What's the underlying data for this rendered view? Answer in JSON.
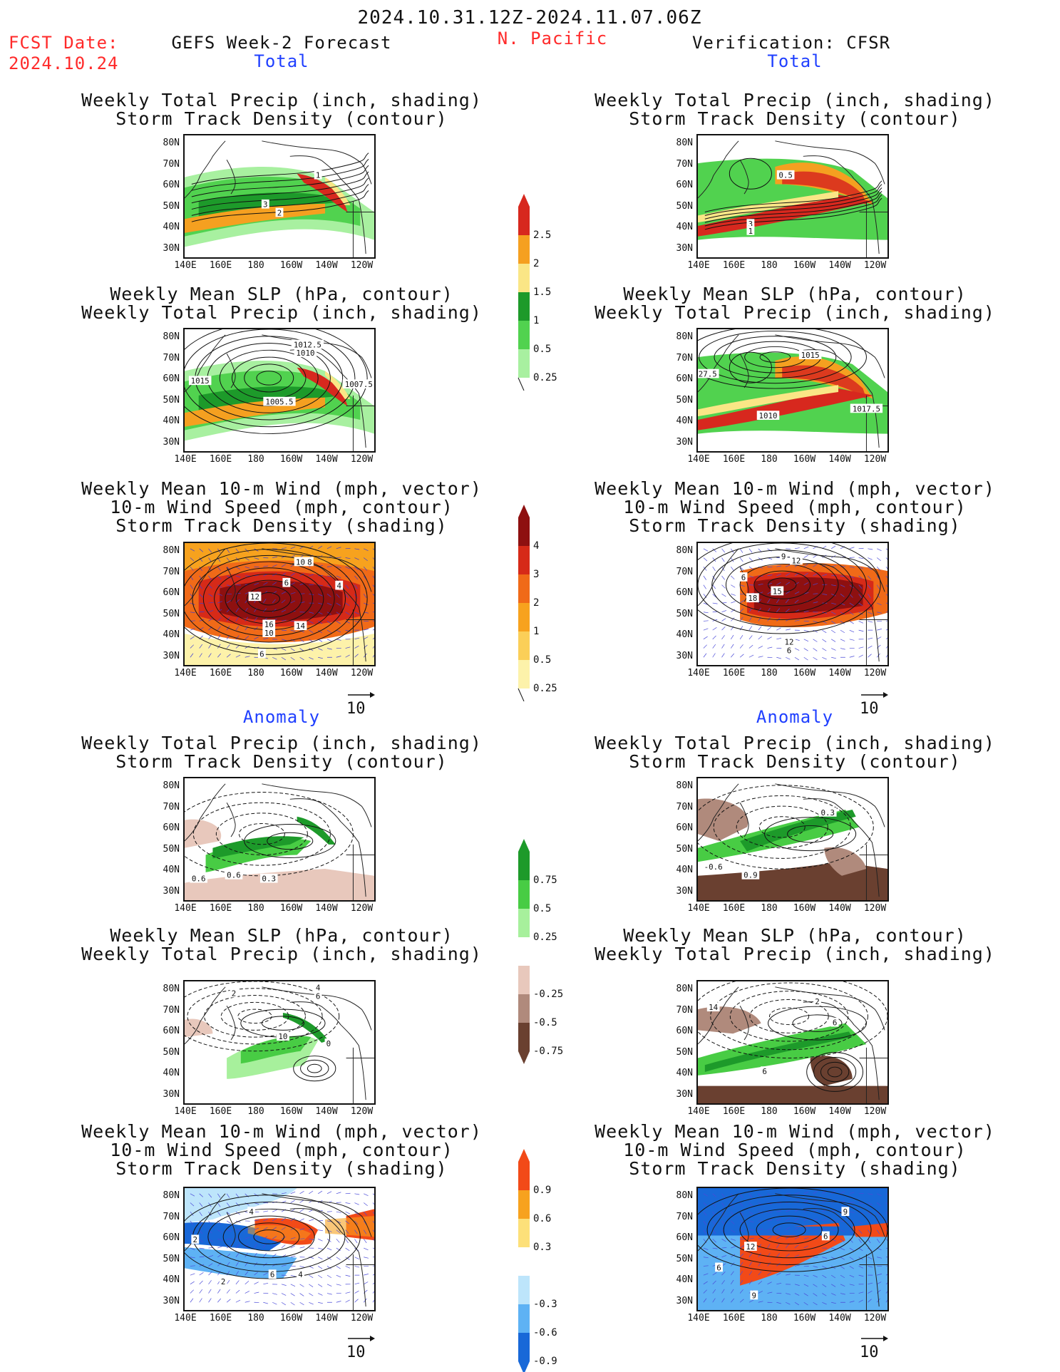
{
  "header": {
    "date_range": "2024.10.31.12Z-2024.11.07.06Z",
    "fcst_label": "FCST Date:",
    "fcst_date": "2024.10.24",
    "left_title": "GEFS Week-2 Forecast",
    "region": "N. Pacific",
    "right_title": "Verification: CFSR"
  },
  "sections": {
    "total": "Total",
    "anomaly": "Anomaly"
  },
  "panel_titles": {
    "precip_storm": [
      "Weekly Total Precip (inch, shading)",
      "Storm Track Density (contour)"
    ],
    "slp_precip": [
      "Weekly Mean SLP (hPa, contour)",
      "Weekly Total Precip (inch, shading)"
    ],
    "wind_storm": [
      "Weekly Mean 10-m Wind (mph, vector)",
      "10-m Wind Speed (mph, contour)",
      "Storm Track Density (shading)"
    ]
  },
  "axes": {
    "y_ticks": [
      "80N",
      "70N",
      "60N",
      "50N",
      "40N",
      "30N"
    ],
    "x_ticks": [
      "140E",
      "160E",
      "180",
      "160W",
      "140W",
      "120W"
    ]
  },
  "vector_ref": "10",
  "colorbars": {
    "precip_total": {
      "labels": [
        "2.5",
        "2",
        "1.5",
        "1",
        "0.5",
        "0.25"
      ],
      "colors": [
        "#d7281e",
        "#f5a020",
        "#fae686",
        "#1d9a2a",
        "#51d24f",
        "#a8f0a0"
      ]
    },
    "storm_total": {
      "labels": [
        "4",
        "3",
        "2",
        "1",
        "0.5",
        "0.25"
      ],
      "colors": [
        "#8e1010",
        "#d62a18",
        "#f06a18",
        "#f7a21e",
        "#fbcf58",
        "#fdf2aa"
      ]
    },
    "precip_anom": {
      "labels": [
        "0.75",
        "0.5",
        "0.25",
        "-0.25",
        "-0.5",
        "-0.75"
      ],
      "colors": [
        "#1d9a2a",
        "#48cc44",
        "#a7f09c",
        "#ffffff",
        "#e8c8bc",
        "#b08a7c",
        "#6a4030"
      ]
    },
    "storm_anom": {
      "labels": [
        "0.9",
        "0.6",
        "0.3",
        "-0.3",
        "-0.6",
        "-0.9"
      ],
      "colors": [
        "#f24a18",
        "#f7a21e",
        "#fde079",
        "#ffffff",
        "#bde5fb",
        "#5eb2f4",
        "#1868d8"
      ]
    }
  },
  "panels": {
    "fc_total_precip": {
      "contour_labels": [
        "1",
        "3",
        "2"
      ]
    },
    "fc_total_slp": {
      "contour_labels": [
        "1012.5",
        "1010",
        "1015",
        "1005.5",
        "1007.5"
      ]
    },
    "fc_total_wind": {
      "contour_labels": [
        "10",
        "8",
        "6",
        "4",
        "12",
        "16",
        "10",
        "14",
        "6"
      ]
    },
    "vf_total_precip": {
      "contour_labels": [
        "0.5",
        "3",
        "1"
      ]
    },
    "vf_total_slp": {
      "contour_labels": [
        "1015",
        "27.5",
        "1010",
        "1017.5"
      ]
    },
    "vf_total_wind": {
      "contour_labels": [
        "9",
        "12",
        "6",
        "18",
        "15",
        "12",
        "6"
      ]
    },
    "fc_anom_precip": {
      "contour_labels": [
        "0.6",
        "0.6",
        "0.3",
        "-0.3"
      ]
    },
    "fc_anom_slp": {
      "contour_labels": [
        "2",
        "4",
        "6",
        "10",
        "0"
      ]
    },
    "fc_anom_wind": {
      "contour_labels": [
        "4",
        "2",
        "6",
        "4",
        "2"
      ]
    },
    "vf_anom_precip": {
      "contour_labels": [
        "0.3",
        "-0.6",
        "0.9"
      ]
    },
    "vf_anom_slp": {
      "contour_labels": [
        "2",
        "14",
        "6",
        "6"
      ]
    },
    "vf_anom_wind": {
      "contour_labels": [
        "9",
        "12",
        "6",
        "6",
        "9"
      ]
    }
  }
}
